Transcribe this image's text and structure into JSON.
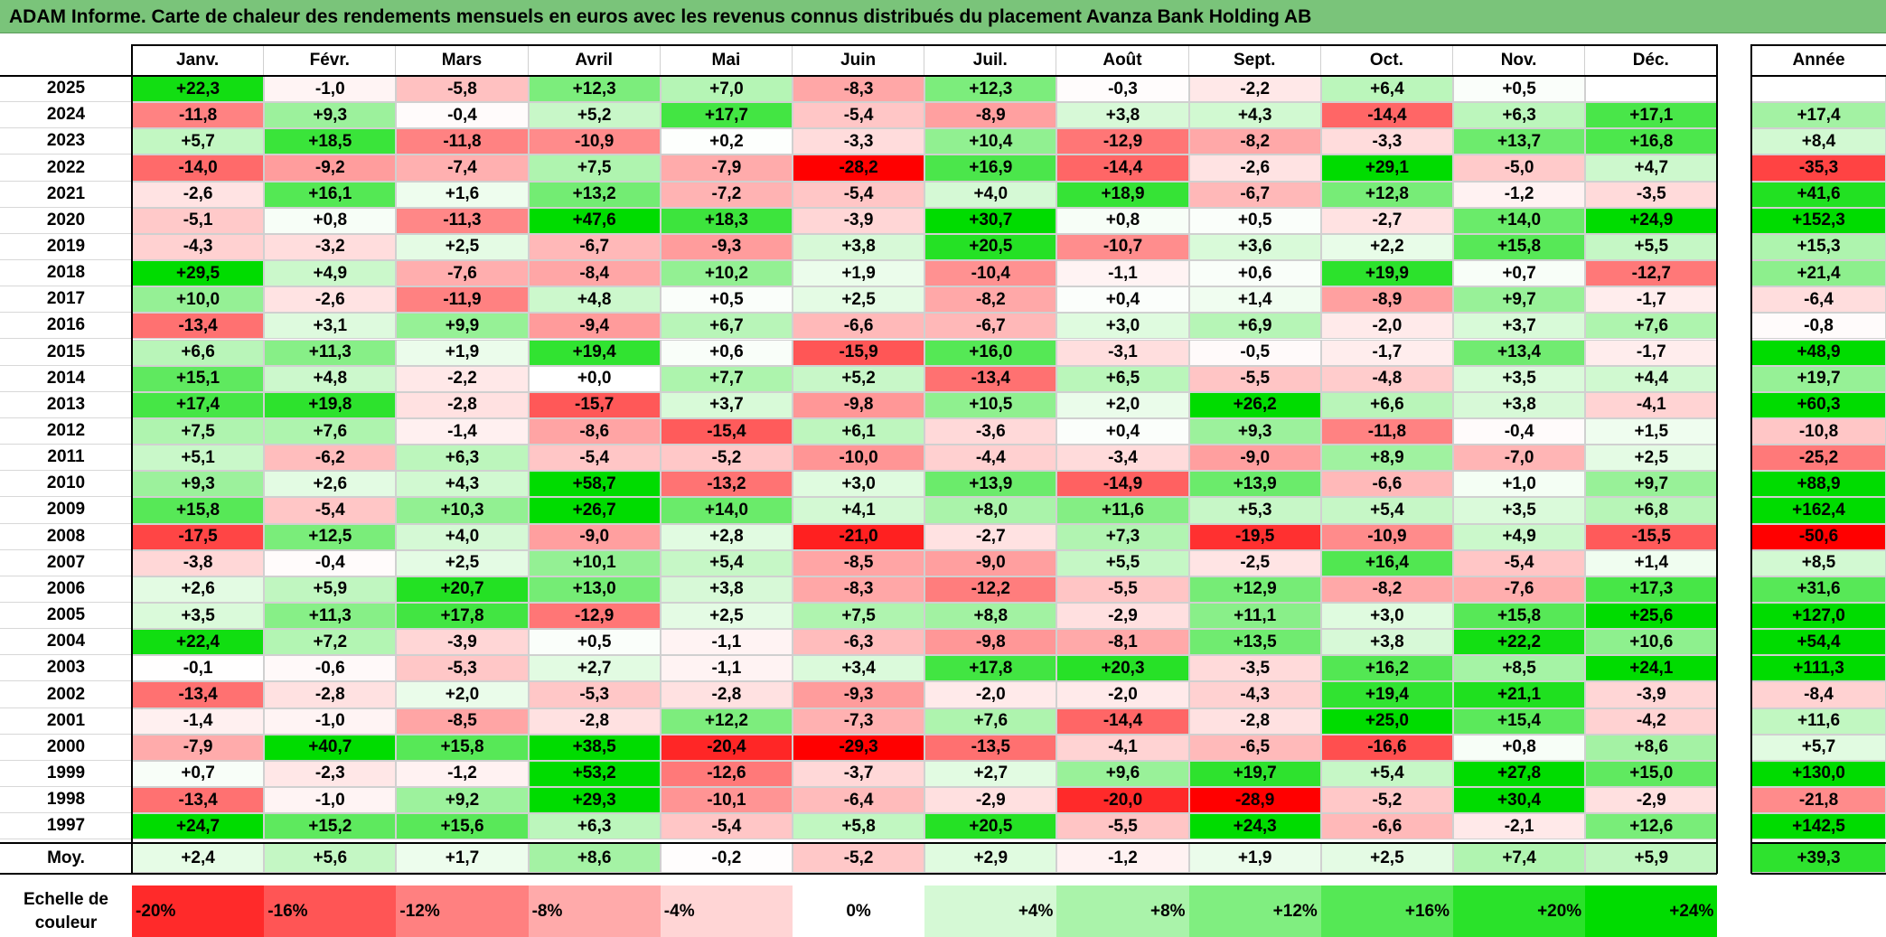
{
  "title": "ADAM Informe. Carte de chaleur des rendements mensuels en euros avec les revenus connus distribués du placement Avanza Bank Holding AB",
  "chart_data": {
    "type": "heatmap",
    "months": [
      "Janv.",
      "Févr.",
      "Mars",
      "Avril",
      "Mai",
      "Juin",
      "Juil.",
      "Août",
      "Sept.",
      "Oct.",
      "Nov.",
      "Déc."
    ],
    "year_header": "Année",
    "rows": [
      {
        "label": "2025",
        "values": [
          "+22,3",
          "-1,0",
          "-5,8",
          "+12,3",
          "+7,0",
          "-8,3",
          "+12,3",
          "-0,3",
          "-2,2",
          "+6,4",
          "+0,5",
          ""
        ],
        "year": ""
      },
      {
        "label": "2024",
        "values": [
          "-11,8",
          "+9,3",
          "-0,4",
          "+5,2",
          "+17,7",
          "-5,4",
          "-8,9",
          "+3,8",
          "+4,3",
          "-14,4",
          "+6,3",
          "+17,1"
        ],
        "year": "+17,4"
      },
      {
        "label": "2023",
        "values": [
          "+5,7",
          "+18,5",
          "-11,8",
          "-10,9",
          "+0,2",
          "-3,3",
          "+10,4",
          "-12,9",
          "-8,2",
          "-3,3",
          "+13,7",
          "+16,8"
        ],
        "year": "+8,4"
      },
      {
        "label": "2022",
        "values": [
          "-14,0",
          "-9,2",
          "-7,4",
          "+7,5",
          "-7,9",
          "-28,2",
          "+16,9",
          "-14,4",
          "-2,6",
          "+29,1",
          "-5,0",
          "+4,7"
        ],
        "year": "-35,3"
      },
      {
        "label": "2021",
        "values": [
          "-2,6",
          "+16,1",
          "+1,6",
          "+13,2",
          "-7,2",
          "-5,4",
          "+4,0",
          "+18,9",
          "-6,7",
          "+12,8",
          "-1,2",
          "-3,5"
        ],
        "year": "+41,6"
      },
      {
        "label": "2020",
        "values": [
          "-5,1",
          "+0,8",
          "-11,3",
          "+47,6",
          "+18,3",
          "-3,9",
          "+30,7",
          "+0,8",
          "+0,5",
          "-2,7",
          "+14,0",
          "+24,9"
        ],
        "year": "+152,3"
      },
      {
        "label": "2019",
        "values": [
          "-4,3",
          "-3,2",
          "+2,5",
          "-6,7",
          "-9,3",
          "+3,8",
          "+20,5",
          "-10,7",
          "+3,6",
          "+2,2",
          "+15,8",
          "+5,5"
        ],
        "year": "+15,3"
      },
      {
        "label": "2018",
        "values": [
          "+29,5",
          "+4,9",
          "-7,6",
          "-8,4",
          "+10,2",
          "+1,9",
          "-10,4",
          "-1,1",
          "+0,6",
          "+19,9",
          "+0,7",
          "-12,7"
        ],
        "year": "+21,4"
      },
      {
        "label": "2017",
        "values": [
          "+10,0",
          "-2,6",
          "-11,9",
          "+4,8",
          "+0,5",
          "+2,5",
          "-8,2",
          "+0,4",
          "+1,4",
          "-8,9",
          "+9,7",
          "-1,7"
        ],
        "year": "-6,4"
      },
      {
        "label": "2016",
        "values": [
          "-13,4",
          "+3,1",
          "+9,9",
          "-9,4",
          "+6,7",
          "-6,6",
          "-6,7",
          "+3,0",
          "+6,9",
          "-2,0",
          "+3,7",
          "+7,6"
        ],
        "year": "-0,8"
      },
      {
        "label": "2015",
        "values": [
          "+6,6",
          "+11,3",
          "+1,9",
          "+19,4",
          "+0,6",
          "-15,9",
          "+16,0",
          "-3,1",
          "-0,5",
          "-1,7",
          "+13,4",
          "-1,7"
        ],
        "year": "+48,9"
      },
      {
        "label": "2014",
        "values": [
          "+15,1",
          "+4,8",
          "-2,2",
          "+0,0",
          "+7,7",
          "+5,2",
          "-13,4",
          "+6,5",
          "-5,5",
          "-4,8",
          "+3,5",
          "+4,4"
        ],
        "year": "+19,7"
      },
      {
        "label": "2013",
        "values": [
          "+17,4",
          "+19,8",
          "-2,8",
          "-15,7",
          "+3,7",
          "-9,8",
          "+10,5",
          "+2,0",
          "+26,2",
          "+6,6",
          "+3,8",
          "-4,1"
        ],
        "year": "+60,3"
      },
      {
        "label": "2012",
        "values": [
          "+7,5",
          "+7,6",
          "-1,4",
          "-8,6",
          "-15,4",
          "+6,1",
          "-3,6",
          "+0,4",
          "+9,3",
          "-11,8",
          "-0,4",
          "+1,5"
        ],
        "year": "-10,8"
      },
      {
        "label": "2011",
        "values": [
          "+5,1",
          "-6,2",
          "+6,3",
          "-5,4",
          "-5,2",
          "-10,0",
          "-4,4",
          "-3,4",
          "-9,0",
          "+8,9",
          "-7,0",
          "+2,5"
        ],
        "year": "-25,2"
      },
      {
        "label": "2010",
        "values": [
          "+9,3",
          "+2,6",
          "+4,3",
          "+58,7",
          "-13,2",
          "+3,0",
          "+13,9",
          "-14,9",
          "+13,9",
          "-6,6",
          "+1,0",
          "+9,7"
        ],
        "year": "+88,9"
      },
      {
        "label": "2009",
        "values": [
          "+15,8",
          "-5,4",
          "+10,3",
          "+26,7",
          "+14,0",
          "+4,1",
          "+8,0",
          "+11,6",
          "+5,3",
          "+5,4",
          "+3,5",
          "+6,8"
        ],
        "year": "+162,4"
      },
      {
        "label": "2008",
        "values": [
          "-17,5",
          "+12,5",
          "+4,0",
          "-9,0",
          "+2,8",
          "-21,0",
          "-2,7",
          "+7,3",
          "-19,5",
          "-10,9",
          "+4,9",
          "-15,5"
        ],
        "year": "-50,6"
      },
      {
        "label": "2007",
        "values": [
          "-3,8",
          "-0,4",
          "+2,5",
          "+10,1",
          "+5,4",
          "-8,5",
          "-9,0",
          "+5,5",
          "-2,5",
          "+16,4",
          "-5,4",
          "+1,4"
        ],
        "year": "+8,5"
      },
      {
        "label": "2006",
        "values": [
          "+2,6",
          "+5,9",
          "+20,7",
          "+13,0",
          "+3,8",
          "-8,3",
          "-12,2",
          "-5,5",
          "+12,9",
          "-8,2",
          "-7,6",
          "+17,3"
        ],
        "year": "+31,6"
      },
      {
        "label": "2005",
        "values": [
          "+3,5",
          "+11,3",
          "+17,8",
          "-12,9",
          "+2,5",
          "+7,5",
          "+8,8",
          "-2,9",
          "+11,1",
          "+3,0",
          "+15,8",
          "+25,6"
        ],
        "year": "+127,0"
      },
      {
        "label": "2004",
        "values": [
          "+22,4",
          "+7,2",
          "-3,9",
          "+0,5",
          "-1,1",
          "-6,3",
          "-9,8",
          "-8,1",
          "+13,5",
          "+3,8",
          "+22,2",
          "+10,6"
        ],
        "year": "+54,4"
      },
      {
        "label": "2003",
        "values": [
          "-0,1",
          "-0,6",
          "-5,3",
          "+2,7",
          "-1,1",
          "+3,4",
          "+17,8",
          "+20,3",
          "-3,5",
          "+16,2",
          "+8,5",
          "+24,1"
        ],
        "year": "+111,3"
      },
      {
        "label": "2002",
        "values": [
          "-13,4",
          "-2,8",
          "+2,0",
          "-5,3",
          "-2,8",
          "-9,3",
          "-2,0",
          "-2,0",
          "-4,3",
          "+19,4",
          "+21,1",
          "-3,9"
        ],
        "year": "-8,4"
      },
      {
        "label": "2001",
        "values": [
          "-1,4",
          "-1,0",
          "-8,5",
          "-2,8",
          "+12,2",
          "-7,3",
          "+7,6",
          "-14,4",
          "-2,8",
          "+25,0",
          "+15,4",
          "-4,2"
        ],
        "year": "+11,6"
      },
      {
        "label": "2000",
        "values": [
          "-7,9",
          "+40,7",
          "+15,8",
          "+38,5",
          "-20,4",
          "-29,3",
          "-13,5",
          "-4,1",
          "-6,5",
          "-16,6",
          "+0,8",
          "+8,6"
        ],
        "year": "+5,7"
      },
      {
        "label": "1999",
        "values": [
          "+0,7",
          "-2,3",
          "-1,2",
          "+53,2",
          "-12,6",
          "-3,7",
          "+2,7",
          "+9,6",
          "+19,7",
          "+5,4",
          "+27,8",
          "+15,0"
        ],
        "year": "+130,0"
      },
      {
        "label": "1998",
        "values": [
          "-13,4",
          "-1,0",
          "+9,2",
          "+29,3",
          "-10,1",
          "-6,4",
          "-2,9",
          "-20,0",
          "-28,9",
          "-5,2",
          "+30,4",
          "-2,9"
        ],
        "year": "-21,8"
      },
      {
        "label": "1997",
        "values": [
          "+24,7",
          "+15,2",
          "+15,6",
          "+6,3",
          "-5,4",
          "+5,8",
          "+20,5",
          "-5,5",
          "+24,3",
          "-6,6",
          "-2,1",
          "+12,6"
        ],
        "year": "+142,5"
      }
    ],
    "average": {
      "label": "Moy.",
      "values": [
        "+2,4",
        "+5,6",
        "+1,7",
        "+8,6",
        "-0,2",
        "-5,2",
        "+2,9",
        "-1,2",
        "+1,9",
        "+2,5",
        "+7,4",
        "+5,9"
      ],
      "year": "+39,3"
    },
    "scale": {
      "label": "Echelle de couleur",
      "stops": [
        "-20%",
        "-16%",
        "-12%",
        "-8%",
        "-4%",
        "0%",
        "+4%",
        "+8%",
        "+12%",
        "+16%",
        "+20%",
        "+24%"
      ],
      "stop_values": [
        -20,
        -16,
        -12,
        -8,
        -4,
        0,
        4,
        8,
        12,
        16,
        20,
        24
      ]
    }
  }
}
